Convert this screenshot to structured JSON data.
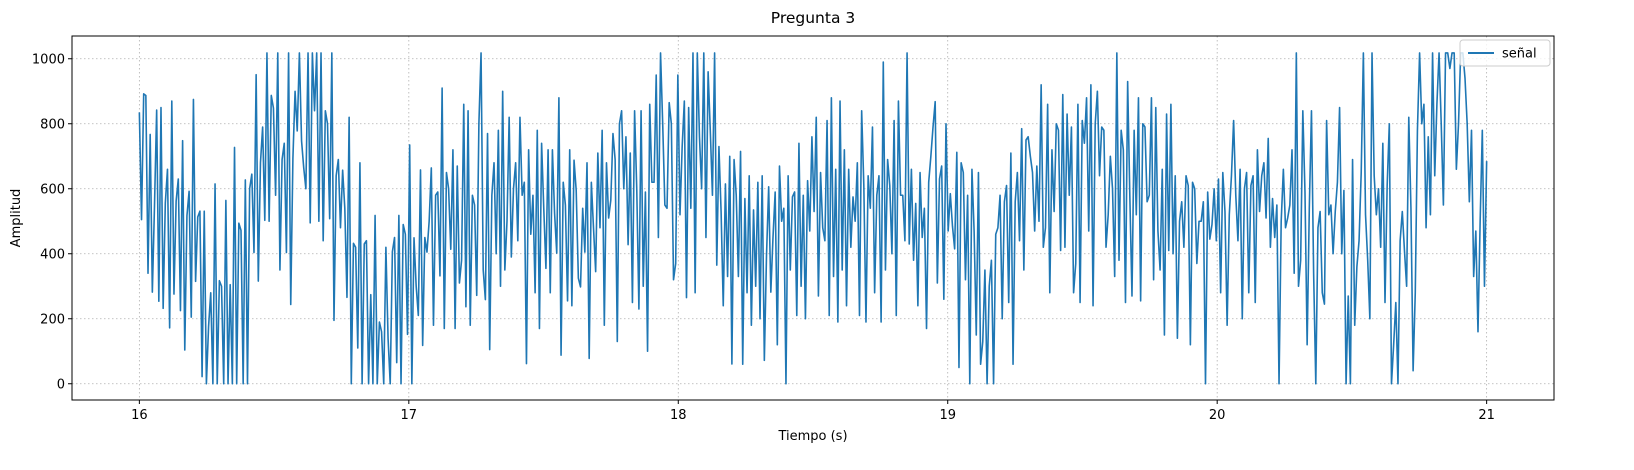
{
  "chart_data": {
    "type": "line",
    "title": "Pregunta 3",
    "xlabel": "Tiempo (s)",
    "ylabel": "Amplitud",
    "xlim": [
      15.75,
      21.25
    ],
    "ylim": [
      -50,
      1070
    ],
    "xticks": [
      16,
      17,
      18,
      19,
      20,
      21
    ],
    "yticks": [
      0,
      200,
      400,
      600,
      800,
      1000
    ],
    "grid": true,
    "legend_position": "top-right",
    "x_start": 16,
    "x_end": 21,
    "series": [
      {
        "name": "señal",
        "color": "#1f77b4",
        "values": [
          835,
          505,
          892,
          887,
          340,
          767,
          282,
          548,
          842,
          254,
          850,
          232,
          556,
          660,
          172,
          870,
          276,
          562,
          630,
          225,
          748,
          104,
          517,
          592,
          205,
          875,
          315,
          513,
          531,
          22,
          531,
          0,
          176,
          280,
          0,
          615,
          0,
          317,
          300,
          0,
          564,
          0,
          305,
          0,
          727,
          0,
          494,
          472,
          0,
          627,
          0,
          600,
          645,
          404,
          951,
          316,
          680,
          790,
          503,
          1018,
          500,
          887,
          848,
          580,
          1018,
          350,
          690,
          740,
          404,
          1018,
          244,
          694,
          900,
          778,
          1018,
          747,
          665,
          600,
          1018,
          495,
          1018,
          840,
          1018,
          500,
          1018,
          440,
          840,
          800,
          508,
          1018,
          195,
          640,
          690,
          480,
          657,
          540,
          266,
          820,
          0,
          432,
          420,
          110,
          680,
          0,
          430,
          440,
          0,
          274,
          0,
          518,
          0,
          190,
          160,
          0,
          420,
          140,
          0,
          406,
          450,
          65,
          518,
          0,
          490,
          460,
          152,
          735,
          0,
          449,
          300,
          210,
          658,
          118,
          450,
          405,
          500,
          664,
          180,
          580,
          590,
          332,
          910,
          170,
          650,
          600,
          414,
          720,
          170,
          670,
          310,
          380,
          860,
          237,
          840,
          180,
          580,
          550,
          272,
          800,
          1018,
          350,
          259,
          770,
          105,
          580,
          680,
          400,
          780,
          300,
          900,
          350,
          500,
          820,
          390,
          600,
          680,
          440,
          820,
          580,
          620,
          62,
          720,
          460,
          580,
          280,
          780,
          170,
          740,
          540,
          355,
          720,
          280,
          720,
          525,
          402,
          880,
          88,
          620,
          550,
          255,
          720,
          240,
          688,
          595,
          325,
          298,
          540,
          405,
          680,
          78,
          620,
          480,
          345,
          710,
          480,
          780,
          180,
          680,
          510,
          565,
          770,
          690,
          130,
          800,
          840,
          600,
          760,
          428,
          710,
          250,
          840,
          600,
          230,
          840,
          300,
          590,
          100,
          860,
          620,
          620,
          950,
          450,
          1018,
          800,
          550,
          540,
          865,
          800,
          320,
          370,
          950,
          520,
          730,
          870,
          265,
          850,
          540,
          1018,
          280,
          1018,
          760,
          600,
          1018,
          450,
          960,
          780,
          580,
          1018,
          365,
          730,
          530,
          240,
          615,
          330,
          700,
          61,
          690,
          580,
          330,
          715,
          60,
          570,
          280,
          640,
          180,
          535,
          300,
          620,
          200,
          640,
          72,
          395,
          606,
          282,
          450,
          590,
          120,
          670,
          500,
          540,
          0,
          640,
          350,
          575,
          590,
          210,
          740,
          300,
          580,
          200,
          625,
          470,
          760,
          530,
          820,
          270,
          650,
          480,
          440,
          810,
          210,
          880,
          330,
          660,
          190,
          870,
          350,
          720,
          240,
          660,
          420,
          575,
          500,
          680,
          210,
          840,
          610,
          190,
          640,
          540,
          790,
          280,
          580,
          640,
          190,
          990,
          350,
          690,
          610,
          400,
          810,
          210,
          870,
          580,
          580,
          440,
          1018,
          430,
          660,
          380,
          555,
          240,
          650,
          450,
          540,
          170,
          620,
          700,
          790,
          868,
          310,
          630,
          670,
          260,
          800,
          470,
          585,
          485,
          415,
          712,
          50,
          680,
          650,
          320,
          580,
          0,
          660,
          470,
          150,
          650,
          60,
          130,
          350,
          0,
          300,
          380,
          0,
          460,
          480,
          580,
          200,
          560,
          610,
          250,
          710,
          60,
          560,
          650,
          440,
          785,
          350,
          750,
          760,
          700,
          650,
          470,
          670,
          500,
          920,
          420,
          480,
          860,
          280,
          720,
          530,
          800,
          780,
          410,
          890,
          420,
          830,
          580,
          790,
          280,
          370,
          860,
          250,
          810,
          740,
          880,
          470,
          920,
          240,
          800,
          900,
          640,
          790,
          780,
          420,
          520,
          700,
          600,
          330,
          1018,
          380,
          780,
          720,
          250,
          930,
          580,
          270,
          780,
          520,
          880,
          255,
          800,
          790,
          560,
          580,
          880,
          320,
          850,
          470,
          350,
          660,
          150,
          830,
          410,
          860,
          400,
          640,
          140,
          500,
          560,
          420,
          640,
          610,
          120,
          620,
          600,
          370,
          500,
          500,
          560,
          0,
          590,
          445,
          490,
          600,
          440,
          630,
          280,
          650,
          530,
          180,
          520,
          640,
          810,
          580,
          440,
          660,
          200,
          600,
          650,
          280,
          610,
          640,
          250,
          720,
          530,
          640,
          680,
          510,
          755,
          420,
          570,
          450,
          550,
          0,
          500,
          660,
          480,
          510,
          550,
          720,
          340,
          1018,
          300,
          380,
          840,
          590,
          120,
          540,
          840,
          340,
          0,
          480,
          530,
          280,
          245,
          810,
          520,
          550,
          400,
          530,
          620,
          850,
          400,
          595,
          0,
          270,
          0,
          690,
          180,
          360,
          440,
          650,
          1018,
          520,
          380,
          200,
          1018,
          640,
          520,
          600,
          420,
          740,
          250,
          610,
          800,
          0,
          120,
          250,
          0,
          440,
          530,
          410,
          300,
          820,
          540,
          40,
          280,
          780,
          1018,
          800,
          860,
          480,
          760,
          520,
          1018,
          640,
          860,
          1018,
          800,
          550,
          1018,
          1018,
          970,
          1018,
          1018,
          660,
          800,
          1018,
          1018,
          940,
          800,
          560,
          780,
          330,
          470,
          160,
          500,
          780,
          300,
          685
        ]
      }
    ]
  }
}
